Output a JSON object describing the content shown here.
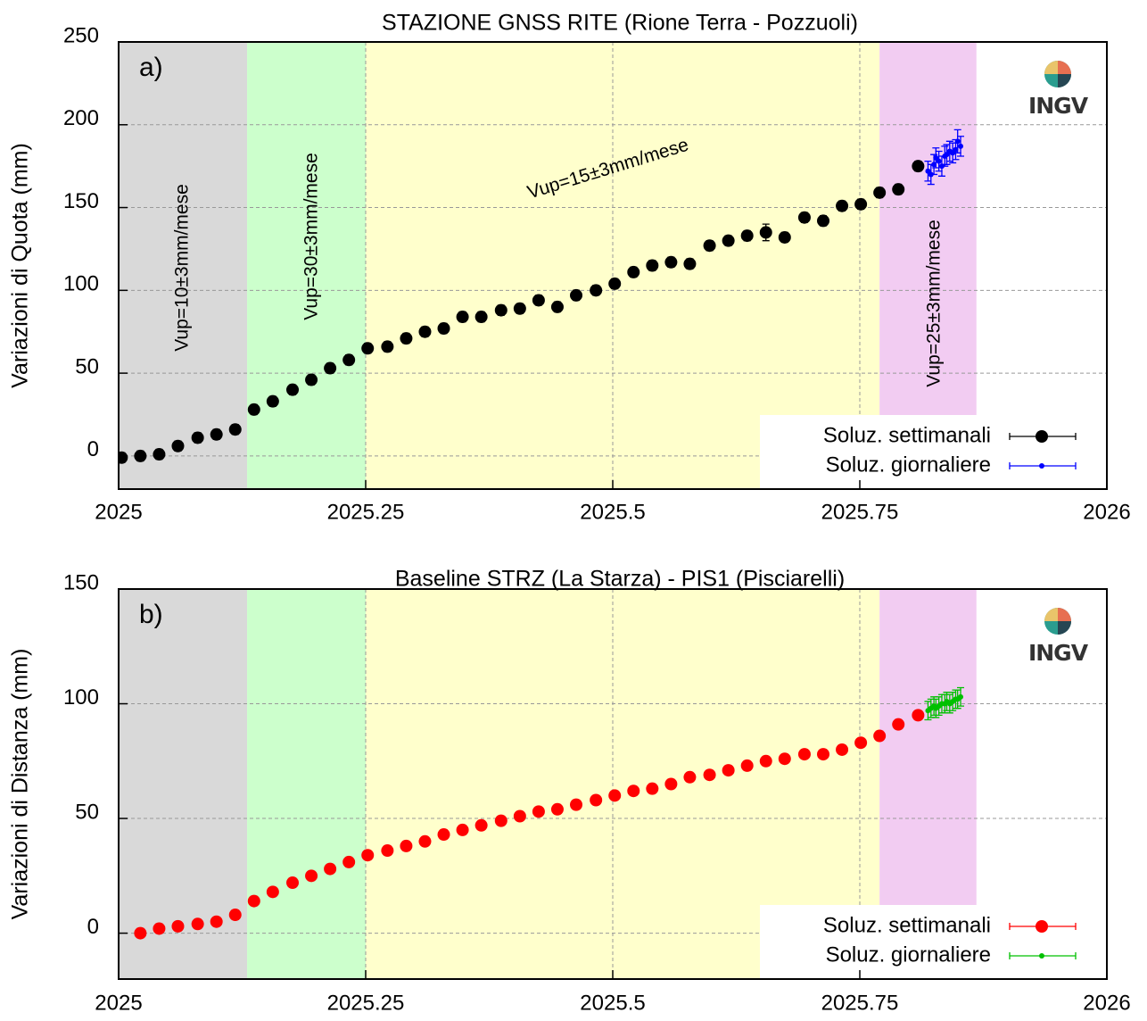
{
  "chart_data": [
    {
      "type": "scatter",
      "title": "STAZIONE GNSS RITE (Rione Terra - Pozzuoli)",
      "ylabel": "Variazioni di Quota (mm)",
      "panel_label": "a)",
      "logo": "INGV",
      "xlim": [
        2025,
        2026
      ],
      "xticks": [
        2025,
        2025.25,
        2025.5,
        2025.75,
        2026
      ],
      "ylim": [
        -20,
        250
      ],
      "yticks": [
        0,
        50,
        100,
        150,
        200,
        250
      ],
      "grid": true,
      "legend": "lower right",
      "regions": [
        {
          "from": 2025,
          "to": 2025.13,
          "color": "#d9d9d9"
        },
        {
          "from": 2025.13,
          "to": 2025.25,
          "color": "#ccffcc"
        },
        {
          "from": 2025.25,
          "to": 2025.77,
          "color": "#ffffcc"
        },
        {
          "from": 2025.77,
          "to": 2025.868,
          "color": "#f2ccf2"
        }
      ],
      "annotations": [
        "Vup=10±3mm/mese",
        "Vup=30±3mm/mese",
        "Vup=15±3mm/mese",
        "Vup=25±3mm/mese"
      ],
      "series": [
        {
          "name": "Soluz. settimanali",
          "color": "#000000",
          "marker": "large",
          "x": [
            2025.003,
            2025.022,
            2025.041,
            2025.06,
            2025.08,
            2025.099,
            2025.118,
            2025.137,
            2025.156,
            2025.176,
            2025.195,
            2025.214,
            2025.233,
            2025.252,
            2025.272,
            2025.291,
            2025.31,
            2025.329,
            2025.348,
            2025.367,
            2025.387,
            2025.406,
            2025.425,
            2025.444,
            2025.463,
            2025.483,
            2025.502,
            2025.521,
            2025.54,
            2025.559,
            2025.578,
            2025.598,
            2025.617,
            2025.636,
            2025.655,
            2025.674,
            2025.694,
            2025.713,
            2025.732,
            2025.751,
            2025.77,
            2025.789,
            2025.809
          ],
          "values": [
            -1,
            0,
            1,
            6,
            11,
            13,
            16,
            28,
            33,
            40,
            46,
            53,
            58,
            65,
            66,
            71,
            75,
            77,
            84,
            84,
            88,
            89,
            94,
            90,
            97,
            100,
            104,
            111,
            115,
            117,
            116,
            127,
            130,
            133,
            135,
            132,
            144,
            142,
            151,
            152,
            159,
            161,
            175
          ],
          "errors": [
            3,
            3,
            3,
            3,
            3,
            3,
            3,
            3,
            3,
            3,
            3,
            3,
            3,
            3,
            3,
            3,
            3,
            3,
            3,
            3,
            3,
            3,
            3,
            3,
            3,
            3,
            3,
            3,
            3,
            3,
            3,
            3,
            3,
            3,
            5,
            3,
            3,
            3,
            3,
            3,
            3,
            3,
            3
          ]
        },
        {
          "name": "Soluz. giornaliere",
          "color": "#0000ff",
          "marker": "small",
          "x": [
            2025.819,
            2025.822,
            2025.825,
            2025.827,
            2025.83,
            2025.833,
            2025.836,
            2025.838,
            2025.841,
            2025.844,
            2025.847,
            2025.849,
            2025.852
          ],
          "values": [
            172,
            170,
            176,
            180,
            178,
            175,
            181,
            182,
            184,
            183,
            185,
            190,
            187
          ],
          "errors": [
            6,
            6,
            6,
            6,
            6,
            6,
            6,
            6,
            6,
            6,
            6,
            7,
            6
          ]
        }
      ]
    },
    {
      "type": "scatter",
      "title": "Baseline STRZ (La Starza) - PIS1 (Pisciarelli)",
      "ylabel": "Variazioni di Distanza (mm)",
      "panel_label": "b)",
      "logo": "INGV",
      "xlim": [
        2025,
        2026
      ],
      "xticks": [
        2025,
        2025.25,
        2025.5,
        2025.75,
        2026
      ],
      "ylim": [
        -20,
        150
      ],
      "yticks": [
        0,
        50,
        100,
        150
      ],
      "grid": true,
      "legend": "lower right",
      "regions": [
        {
          "from": 2025,
          "to": 2025.13,
          "color": "#d9d9d9"
        },
        {
          "from": 2025.13,
          "to": 2025.25,
          "color": "#ccffcc"
        },
        {
          "from": 2025.25,
          "to": 2025.77,
          "color": "#ffffcc"
        },
        {
          "from": 2025.77,
          "to": 2025.868,
          "color": "#f2ccf2"
        }
      ],
      "annotations": [],
      "series": [
        {
          "name": "Soluz. settimanali",
          "color": "#ff0000",
          "marker": "large",
          "x": [
            2025.022,
            2025.041,
            2025.06,
            2025.08,
            2025.099,
            2025.118,
            2025.137,
            2025.156,
            2025.176,
            2025.195,
            2025.214,
            2025.233,
            2025.252,
            2025.272,
            2025.291,
            2025.31,
            2025.329,
            2025.348,
            2025.367,
            2025.387,
            2025.406,
            2025.425,
            2025.444,
            2025.463,
            2025.483,
            2025.502,
            2025.521,
            2025.54,
            2025.559,
            2025.578,
            2025.598,
            2025.617,
            2025.636,
            2025.655,
            2025.674,
            2025.694,
            2025.713,
            2025.732,
            2025.751,
            2025.77,
            2025.789,
            2025.809
          ],
          "values": [
            0,
            2,
            3,
            4,
            5,
            8,
            14,
            18,
            22,
            25,
            28,
            31,
            34,
            36,
            38,
            40,
            43,
            45,
            47,
            49,
            51,
            53,
            54,
            56,
            58,
            60,
            62,
            63,
            65,
            68,
            69,
            71,
            73,
            75,
            76,
            78,
            78,
            80,
            83,
            86,
            91,
            95
          ],
          "errors": [
            2,
            2,
            2,
            2,
            2,
            2,
            2,
            2,
            2,
            2,
            2,
            2,
            2,
            2,
            2,
            2,
            2,
            2,
            2,
            2,
            2,
            2,
            2,
            2,
            2,
            2,
            2,
            2,
            2,
            2,
            2,
            2,
            2,
            2,
            2,
            2,
            2,
            2,
            2,
            2,
            2,
            2
          ]
        },
        {
          "name": "Soluz. giornaliere",
          "color": "#00c000",
          "marker": "small",
          "x": [
            2025.819,
            2025.822,
            2025.825,
            2025.827,
            2025.83,
            2025.833,
            2025.836,
            2025.838,
            2025.841,
            2025.844,
            2025.847,
            2025.849,
            2025.852
          ],
          "values": [
            97,
            98,
            99,
            98,
            99,
            100,
            100,
            101,
            100,
            101,
            102,
            102,
            103
          ],
          "errors": [
            4,
            4,
            4,
            4,
            4,
            4,
            4,
            4,
            4,
            4,
            4,
            4,
            4
          ]
        }
      ]
    }
  ]
}
